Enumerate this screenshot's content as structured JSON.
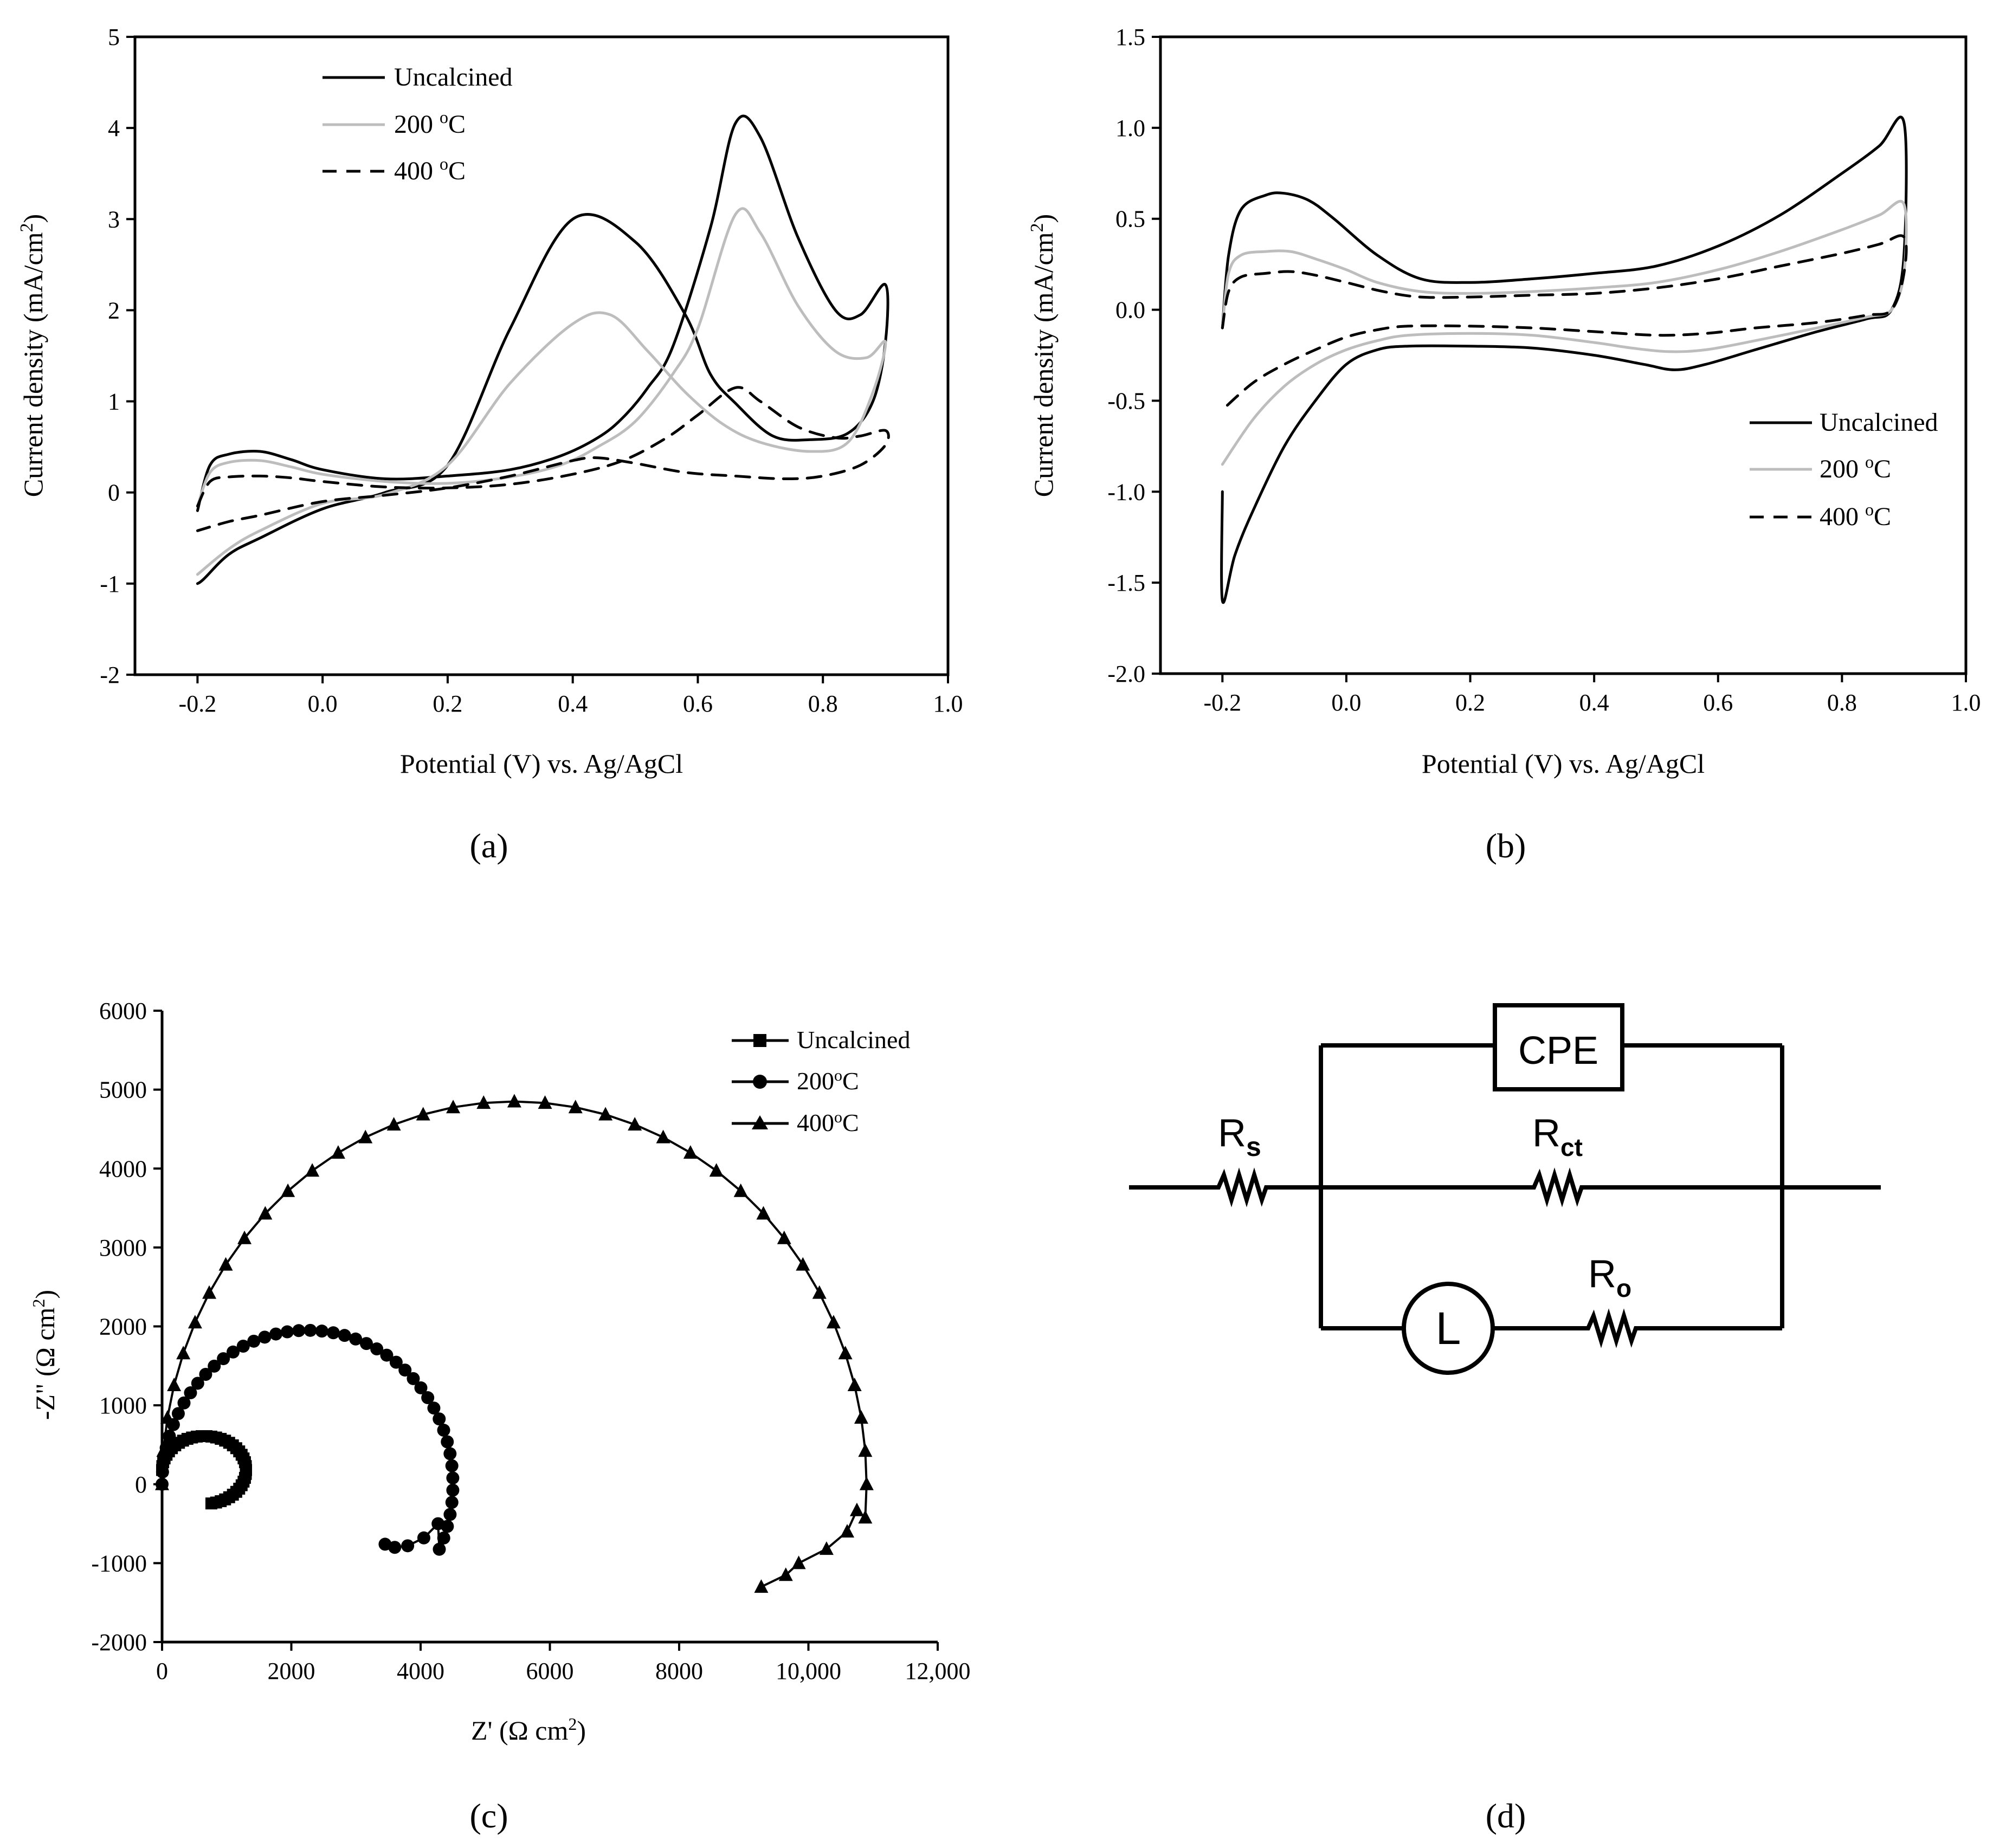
{
  "figure": {
    "panel_labels": [
      "(a)",
      "(b)",
      "(c)",
      "(d)"
    ],
    "colors": {
      "ink": "#000000",
      "gray": "#bdbdbd",
      "axis": "#000000"
    }
  },
  "chart_data": [
    {
      "id": "a",
      "type": "line",
      "xlabel": "Potential (V) vs. Ag/AgCl",
      "ylabel": "Current density (mA/cm2)",
      "xlim": [
        -0.3,
        1.0
      ],
      "ylim": [
        -2,
        5
      ],
      "xticks": [
        -0.2,
        0.0,
        0.2,
        0.4,
        0.6,
        0.8,
        1.0
      ],
      "xtick_labels": [
        "-0.2",
        "0.0",
        "0.2",
        "0.4",
        "0.6",
        "0.8",
        "1.0"
      ],
      "yticks": [
        -2,
        -1,
        0,
        1,
        2,
        3,
        4,
        5
      ],
      "ytick_labels": [
        "-2",
        "-1",
        "0",
        "1",
        "2",
        "3",
        "4",
        "5"
      ],
      "legend": {
        "position": "top-left",
        "entries": [
          "Uncalcined",
          "200 oC",
          "400 oC"
        ]
      },
      "series": [
        {
          "name": "Uncalcined",
          "style": "solid",
          "color": "#000000",
          "x": [
            -0.2,
            -0.18,
            -0.15,
            -0.1,
            -0.05,
            0.0,
            0.1,
            0.2,
            0.3,
            0.38,
            0.44,
            0.48,
            0.52,
            0.56,
            0.62,
            0.66,
            0.7,
            0.76,
            0.82,
            0.86,
            0.9,
            0.9,
            0.88,
            0.84,
            0.78,
            0.72,
            0.66,
            0.62,
            0.58,
            0.5,
            0.4,
            0.3,
            0.2,
            0.1,
            0.0,
            -0.1,
            -0.15,
            -0.19,
            -0.2
          ],
          "y": [
            -0.2,
            0.3,
            0.42,
            0.45,
            0.36,
            0.25,
            0.15,
            0.18,
            0.25,
            0.4,
            0.6,
            0.82,
            1.15,
            1.6,
            2.9,
            4.05,
            3.9,
            2.8,
            2.0,
            1.95,
            2.28,
            1.65,
            1.0,
            0.65,
            0.58,
            0.62,
            0.98,
            1.3,
            1.95,
            2.75,
            3.0,
            1.8,
            0.3,
            0.0,
            -0.18,
            -0.5,
            -0.68,
            -0.95,
            -1.0
          ]
        },
        {
          "name": "200 oC",
          "style": "solid",
          "color": "#bdbdbd",
          "x": [
            -0.2,
            -0.18,
            -0.15,
            -0.1,
            -0.05,
            0.0,
            0.1,
            0.2,
            0.3,
            0.38,
            0.44,
            0.5,
            0.56,
            0.6,
            0.66,
            0.7,
            0.76,
            0.82,
            0.87,
            0.9,
            0.88,
            0.84,
            0.78,
            0.7,
            0.64,
            0.58,
            0.52,
            0.46,
            0.4,
            0.3,
            0.2,
            0.1,
            0.0,
            -0.1,
            -0.15,
            -0.2
          ],
          "y": [
            -0.15,
            0.22,
            0.33,
            0.35,
            0.28,
            0.2,
            0.12,
            0.1,
            0.17,
            0.3,
            0.5,
            0.78,
            1.3,
            1.8,
            3.05,
            2.85,
            2.05,
            1.55,
            1.48,
            1.65,
            1.1,
            0.55,
            0.45,
            0.55,
            0.75,
            1.1,
            1.55,
            1.95,
            1.85,
            1.2,
            0.3,
            -0.02,
            -0.12,
            -0.42,
            -0.62,
            -0.9
          ]
        },
        {
          "name": "400 oC",
          "style": "dashed",
          "color": "#000000",
          "x": [
            -0.2,
            -0.18,
            -0.15,
            -0.1,
            -0.05,
            0.0,
            0.1,
            0.2,
            0.3,
            0.4,
            0.48,
            0.55,
            0.6,
            0.66,
            0.7,
            0.76,
            0.82,
            0.86,
            0.9,
            0.9,
            0.86,
            0.8,
            0.74,
            0.66,
            0.58,
            0.5,
            0.44,
            0.4,
            0.3,
            0.2,
            0.1,
            0.0,
            -0.1,
            -0.15,
            -0.2
          ],
          "y": [
            -0.15,
            0.12,
            0.17,
            0.18,
            0.16,
            0.12,
            0.06,
            0.05,
            0.09,
            0.2,
            0.35,
            0.6,
            0.85,
            1.15,
            1.0,
            0.72,
            0.6,
            0.62,
            0.68,
            0.52,
            0.3,
            0.18,
            0.15,
            0.18,
            0.22,
            0.32,
            0.38,
            0.35,
            0.18,
            0.05,
            -0.03,
            -0.1,
            -0.25,
            -0.32,
            -0.42
          ]
        }
      ]
    },
    {
      "id": "b",
      "type": "line",
      "xlabel": "Potential (V) vs. Ag/AgCl",
      "ylabel": "Current density (mA/cm2)",
      "xlim": [
        -0.3,
        1.0
      ],
      "ylim": [
        -2.0,
        1.5
      ],
      "xticks": [
        -0.2,
        0.0,
        0.2,
        0.4,
        0.6,
        0.8,
        1.0
      ],
      "xtick_labels": [
        "-0.2",
        "0.0",
        "0.2",
        "0.4",
        "0.6",
        "0.8",
        "1.0"
      ],
      "yticks": [
        -2.0,
        -1.5,
        -1.0,
        -0.5,
        0.0,
        0.5,
        1.0,
        1.5
      ],
      "ytick_labels": [
        "-2.0",
        "-1.5",
        "-1.0",
        "-0.5",
        "0.0",
        "0.5",
        "1.0",
        "1.5"
      ],
      "legend": {
        "position": "bottom-right",
        "entries": [
          "Uncalcined",
          "200 oC",
          "400 oC"
        ]
      },
      "series": [
        {
          "name": "Uncalcined",
          "style": "solid",
          "color": "#000000",
          "x": [
            -0.2,
            -0.19,
            -0.17,
            -0.13,
            -0.1,
            -0.06,
            -0.02,
            0.05,
            0.12,
            0.2,
            0.3,
            0.4,
            0.5,
            0.6,
            0.7,
            0.8,
            0.86,
            0.9,
            0.9,
            0.88,
            0.84,
            0.76,
            0.66,
            0.58,
            0.53,
            0.48,
            0.4,
            0.3,
            0.2,
            0.1,
            0.05,
            0.0,
            -0.05,
            -0.1,
            -0.15,
            -0.18,
            -0.2,
            -0.2
          ],
          "y": [
            -0.1,
            0.3,
            0.55,
            0.63,
            0.64,
            0.6,
            0.5,
            0.3,
            0.17,
            0.15,
            0.17,
            0.2,
            0.24,
            0.35,
            0.52,
            0.75,
            0.9,
            1.03,
            0.3,
            0.0,
            -0.05,
            -0.12,
            -0.22,
            -0.3,
            -0.33,
            -0.3,
            -0.25,
            -0.21,
            -0.2,
            -0.2,
            -0.22,
            -0.3,
            -0.5,
            -0.75,
            -1.1,
            -1.35,
            -1.6,
            -1.0
          ]
        },
        {
          "name": "200 oC",
          "style": "solid",
          "color": "#bdbdbd",
          "x": [
            -0.2,
            -0.19,
            -0.17,
            -0.13,
            -0.09,
            -0.05,
            0.0,
            0.05,
            0.12,
            0.2,
            0.3,
            0.4,
            0.5,
            0.6,
            0.7,
            0.8,
            0.86,
            0.9,
            0.9,
            0.88,
            0.84,
            0.76,
            0.66,
            0.58,
            0.52,
            0.46,
            0.4,
            0.3,
            0.2,
            0.1,
            0.05,
            0.0,
            -0.05,
            -0.1,
            -0.15,
            -0.2
          ],
          "y": [
            -0.1,
            0.2,
            0.3,
            0.32,
            0.32,
            0.28,
            0.22,
            0.15,
            0.1,
            0.09,
            0.1,
            0.12,
            0.15,
            0.22,
            0.32,
            0.44,
            0.52,
            0.58,
            0.2,
            0.0,
            -0.04,
            -0.1,
            -0.17,
            -0.22,
            -0.23,
            -0.21,
            -0.18,
            -0.14,
            -0.13,
            -0.14,
            -0.17,
            -0.22,
            -0.3,
            -0.42,
            -0.6,
            -0.85
          ]
        },
        {
          "name": "400 oC",
          "style": "dashed",
          "color": "#000000",
          "x": [
            -0.2,
            -0.19,
            -0.17,
            -0.13,
            -0.09,
            -0.05,
            0.0,
            0.06,
            0.12,
            0.2,
            0.3,
            0.4,
            0.5,
            0.6,
            0.7,
            0.8,
            0.86,
            0.9,
            0.9,
            0.88,
            0.84,
            0.76,
            0.66,
            0.58,
            0.5,
            0.4,
            0.3,
            0.2,
            0.1,
            0.05,
            0.0,
            -0.05,
            -0.1,
            -0.15,
            -0.2
          ],
          "y": [
            -0.1,
            0.1,
            0.18,
            0.2,
            0.21,
            0.19,
            0.15,
            0.1,
            0.07,
            0.07,
            0.08,
            0.09,
            0.12,
            0.17,
            0.24,
            0.31,
            0.36,
            0.4,
            0.2,
            0.0,
            -0.03,
            -0.07,
            -0.1,
            -0.13,
            -0.14,
            -0.12,
            -0.1,
            -0.09,
            -0.09,
            -0.11,
            -0.15,
            -0.22,
            -0.3,
            -0.4,
            -0.55
          ]
        }
      ]
    },
    {
      "id": "c",
      "type": "scatter",
      "xlabel": "Z' (Ω cm2)",
      "ylabel": "-Z\" (Ω cm2)",
      "xlim": [
        0,
        12000
      ],
      "ylim": [
        -2000,
        6000
      ],
      "xticks": [
        0,
        2000,
        4000,
        6000,
        8000,
        10000,
        12000
      ],
      "xtick_labels": [
        "0",
        "2000",
        "4000",
        "6000",
        "8000",
        "10,000",
        "12,000"
      ],
      "yticks": [
        -2000,
        -1000,
        0,
        1000,
        2000,
        3000,
        4000,
        5000,
        6000
      ],
      "ytick_labels": [
        "-2000",
        "-1000",
        "0",
        "1000",
        "2000",
        "3000",
        "4000",
        "5000",
        "6000"
      ],
      "legend": {
        "position": "top-right",
        "entries": [
          "Uncalcined",
          "200°C",
          "400°C"
        ]
      },
      "series": [
        {
          "name": "Uncalcined",
          "marker": "square",
          "circle": {
            "cx": 650,
            "cy": 180,
            "rx": 650,
            "ry": 430,
            "start_deg": 180,
            "end_deg": -80,
            "points": 40
          }
        },
        {
          "name": "200°C",
          "marker": "circle",
          "circle": {
            "cx": 2250,
            "cy": 0,
            "rx": 2250,
            "ry": 1950,
            "start_deg": 180,
            "end_deg": -25,
            "points": 46
          },
          "tail": {
            "x": [
              4270,
              4050,
              3800,
              3600,
              3450
            ],
            "y": [
              -500,
              -680,
              -780,
              -800,
              -760
            ]
          }
        },
        {
          "name": "400°C",
          "marker": "triangle",
          "circle": {
            "cx": 5450,
            "cy": 0,
            "rx": 5450,
            "ry": 4850,
            "start_deg": 180,
            "end_deg": -5,
            "points": 38
          },
          "tail": {
            "x": [
              10750,
              10600,
              10280,
              9850,
              9650,
              9270
            ],
            "y": [
              -330,
              -600,
              -820,
              -1000,
              -1150,
              -1300
            ]
          }
        }
      ]
    }
  ],
  "circuit": {
    "labels": {
      "cpe": "CPE",
      "rs": "R",
      "rs_sub": "s",
      "rct": "R",
      "rct_sub": "ct",
      "ro": "R",
      "ro_sub": "o",
      "inductor": "L"
    }
  }
}
